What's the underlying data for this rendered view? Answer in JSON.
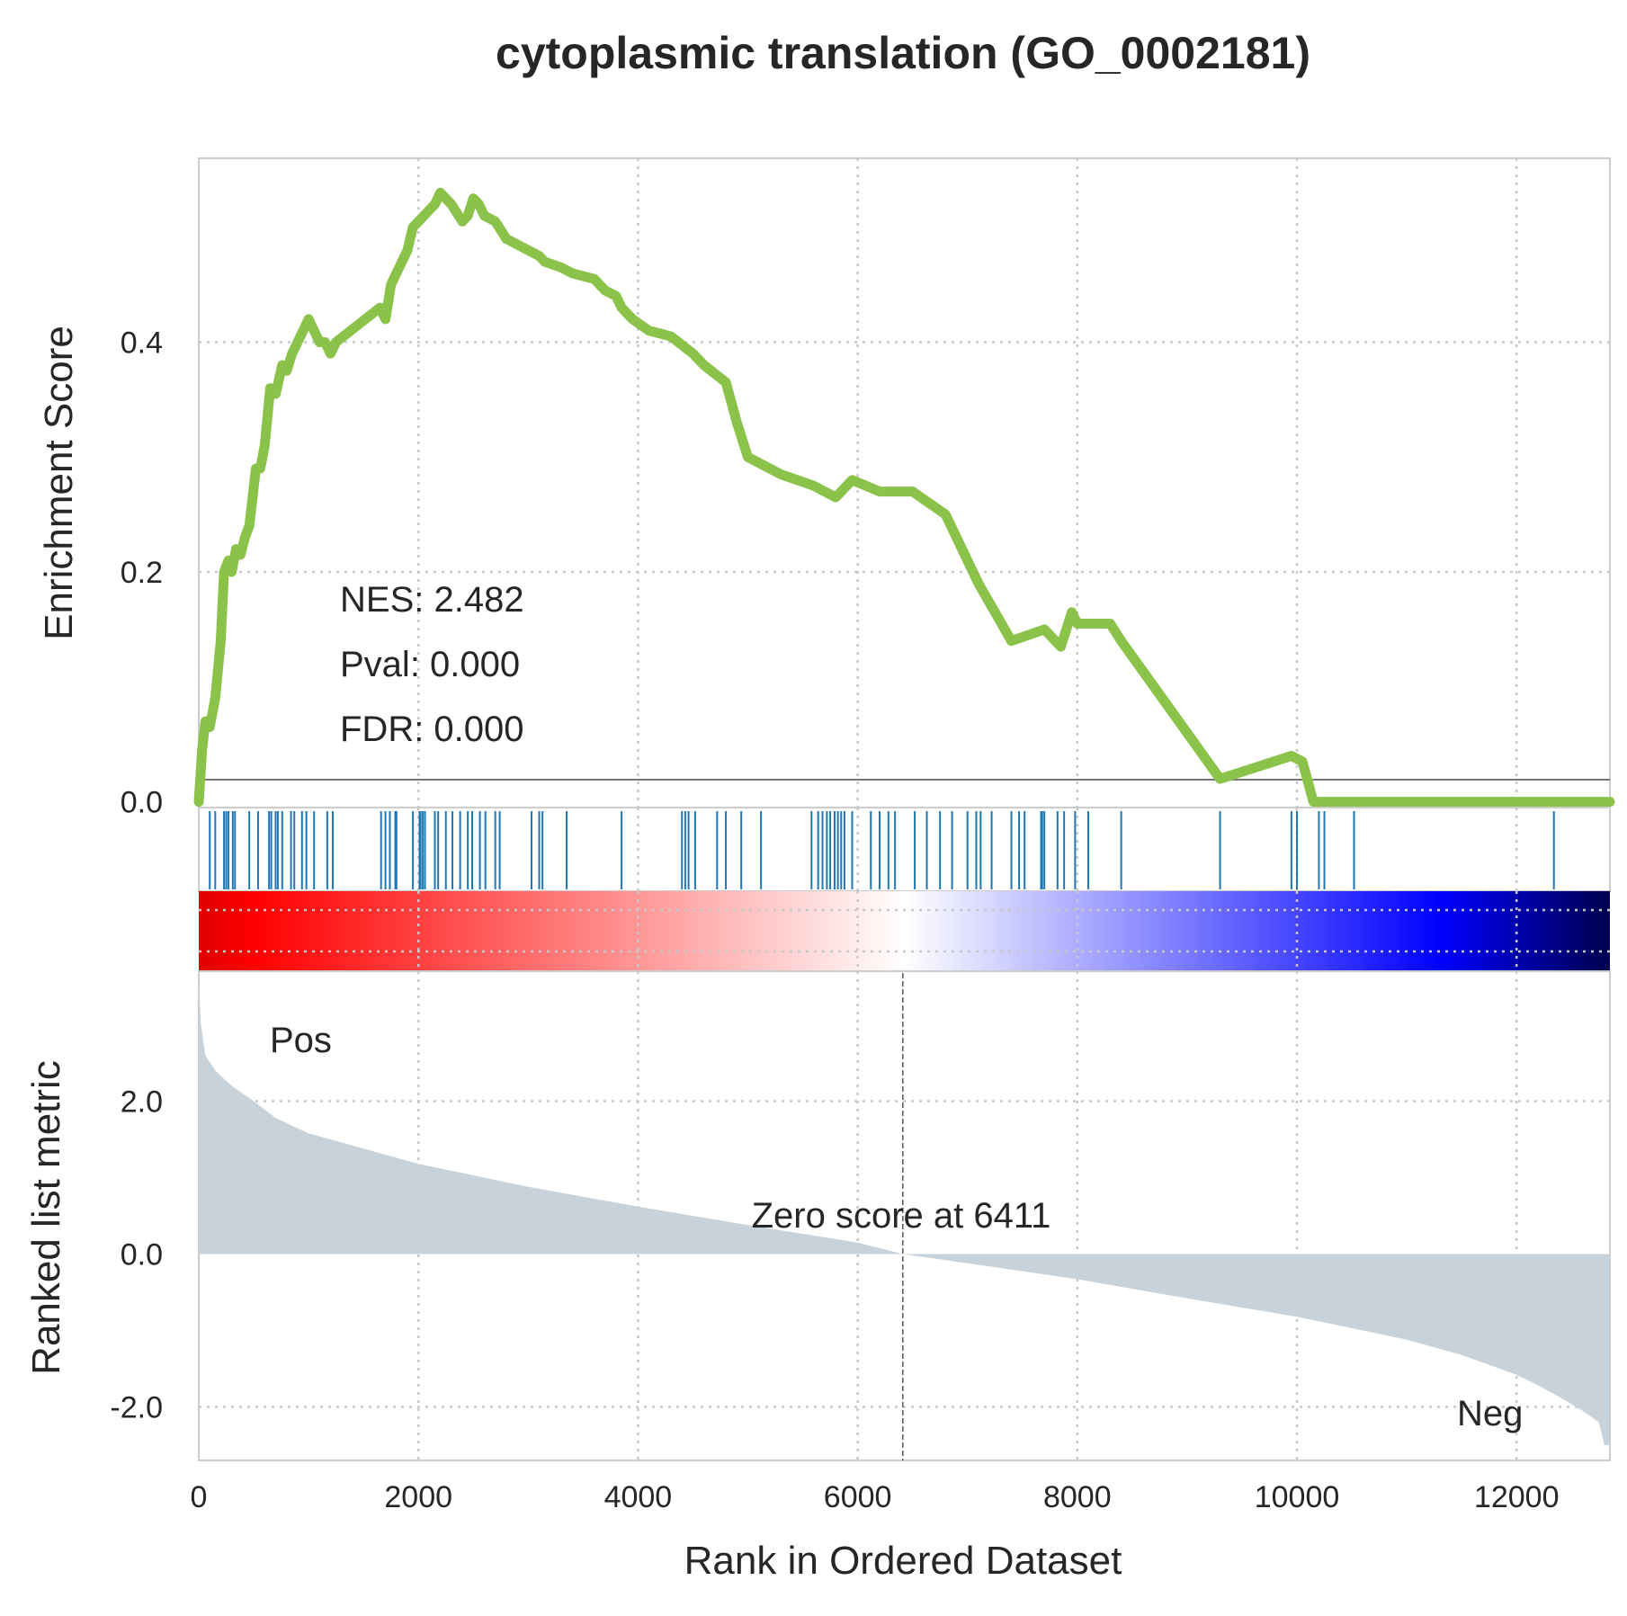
{
  "chart_data": {
    "type": "line",
    "title": "cytoplasmic translation (GO_0002181)",
    "xlabel": "Rank in Ordered Dataset",
    "xlim": [
      0,
      12850
    ],
    "x_ticks": [
      "0",
      "2000",
      "4000",
      "6000",
      "8000",
      "10000",
      "12000"
    ],
    "x_tick_values": [
      0,
      2000,
      4000,
      6000,
      8000,
      10000,
      12000
    ],
    "grid": true,
    "enrichment_panel": {
      "ylabel": "Enrichment Score",
      "ylim": [
        -0.005,
        0.56
      ],
      "y_ticks": [
        "0.0",
        "0.2",
        "0.4"
      ],
      "y_tick_values": [
        0.0,
        0.2,
        0.4
      ],
      "line_color": "#8bc34a",
      "series": [
        {
          "x": [
            0,
            30,
            60,
            100,
            150,
            200,
            230,
            270,
            300,
            340,
            380,
            420,
            460,
            520,
            560,
            600,
            650,
            700,
            760,
            800,
            850,
            900,
            950,
            1000,
            1050,
            1100,
            1150,
            1200,
            1250,
            1650,
            1700,
            1750,
            1800,
            1900,
            1950,
            2000,
            2050,
            2150,
            2200,
            2300,
            2400,
            2450,
            2500,
            2550,
            2600,
            2700,
            2800,
            3000,
            3100,
            3150,
            3300,
            3400,
            3600,
            3700,
            3800,
            3850,
            3950,
            4100,
            4300,
            4500,
            4600,
            4800,
            4900,
            5000,
            5100,
            5300,
            5600,
            5800,
            5950,
            6200,
            6500,
            6800,
            7100,
            7400,
            7700,
            7800,
            7850,
            7950,
            8000,
            8300,
            8400,
            9300,
            9950,
            10050,
            10150,
            10200,
            10250,
            10450,
            10500,
            12300,
            12350,
            12400,
            12850
          ],
          "values": [
            0.0,
            0.045,
            0.07,
            0.065,
            0.09,
            0.14,
            0.2,
            0.21,
            0.2,
            0.22,
            0.215,
            0.23,
            0.24,
            0.29,
            0.29,
            0.31,
            0.36,
            0.355,
            0.38,
            0.375,
            0.39,
            0.4,
            0.41,
            0.42,
            0.41,
            0.4,
            0.4,
            0.39,
            0.4,
            0.43,
            0.42,
            0.45,
            0.46,
            0.48,
            0.5,
            0.505,
            0.51,
            0.52,
            0.53,
            0.52,
            0.505,
            0.51,
            0.525,
            0.52,
            0.51,
            0.505,
            0.49,
            0.48,
            0.475,
            0.47,
            0.465,
            0.46,
            0.455,
            0.445,
            0.44,
            0.43,
            0.42,
            0.41,
            0.405,
            0.39,
            0.38,
            0.365,
            0.33,
            0.3,
            0.295,
            0.285,
            0.275,
            0.265,
            0.28,
            0.27,
            0.27,
            0.25,
            0.19,
            0.14,
            0.15,
            0.14,
            0.135,
            0.165,
            0.155,
            0.155,
            0.14,
            0.02,
            0.04,
            0.035,
            0.0,
            0.0,
            0.0,
            0.0,
            0.0,
            0.0,
            0.0,
            0.0,
            0.0
          ]
        }
      ],
      "annotations": {
        "nes": "NES: 2.482",
        "pval": "Pval: 0.000",
        "fdr": "FDR: 0.000"
      }
    },
    "hits_panel": {
      "color": "#1f77b4",
      "hit_ranks": [
        100,
        150,
        230,
        250,
        270,
        310,
        330,
        460,
        540,
        640,
        660,
        700,
        720,
        760,
        840,
        870,
        940,
        980,
        1050,
        1170,
        1220,
        1660,
        1700,
        1740,
        1790,
        1800,
        1950,
        2010,
        2020,
        2040,
        2060,
        2150,
        2180,
        2250,
        2310,
        2380,
        2450,
        2490,
        2560,
        2610,
        2700,
        2740,
        3030,
        3100,
        3130,
        3350,
        3850,
        4400,
        4430,
        4460,
        4520,
        4720,
        4800,
        4940,
        5120,
        5580,
        5640,
        5680,
        5720,
        5750,
        5790,
        5820,
        5850,
        5880,
        5950,
        6120,
        6200,
        6280,
        6340,
        6520,
        6630,
        6750,
        6860,
        7000,
        7080,
        7120,
        7220,
        7400,
        7470,
        7520,
        7670,
        7680,
        7700,
        7820,
        7880,
        7980,
        8100,
        8400,
        9300,
        9950,
        10000,
        10200,
        10250,
        10520,
        12340
      ]
    },
    "colorbar": {
      "colors": [
        "#ff0000",
        "#ffffff",
        "#0000ff",
        "#00004d"
      ]
    },
    "metric_panel": {
      "ylabel": "Ranked list metric",
      "ylim": [
        -2.7,
        3.7
      ],
      "y_ticks": [
        "2.0",
        "0.0",
        "-2.0"
      ],
      "y_tick_values": [
        2.0,
        0.0,
        -2.0
      ],
      "fill_color": "#c8d2db",
      "x": [
        0,
        20,
        60,
        150,
        300,
        500,
        700,
        1000,
        1500,
        2000,
        3000,
        4000,
        5000,
        6000,
        6411,
        7000,
        8000,
        9000,
        10000,
        11000,
        11500,
        12000,
        12200,
        12400,
        12600,
        12750,
        12800,
        12850
      ],
      "values": [
        3.6,
        3.0,
        2.6,
        2.4,
        2.2,
        2.0,
        1.78,
        1.58,
        1.38,
        1.18,
        0.88,
        0.62,
        0.38,
        0.15,
        0.0,
        -0.12,
        -0.33,
        -0.58,
        -0.82,
        -1.12,
        -1.32,
        -1.58,
        -1.72,
        -1.88,
        -2.05,
        -2.2,
        -2.5,
        -2.5
      ],
      "zero_cross": 6411,
      "zero_label": "Zero score at 6411",
      "pos_label": "Pos",
      "pos_color": "#ff0000",
      "neg_label": "Neg",
      "neg_color": "#0000ff"
    }
  }
}
